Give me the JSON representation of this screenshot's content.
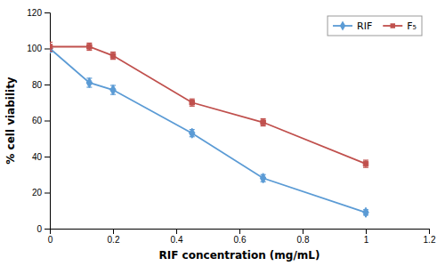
{
  "chart_data": {
    "type": "line",
    "x": [
      0,
      0.125,
      0.2,
      0.45,
      0.675,
      1
    ],
    "series": [
      {
        "name": "RIF",
        "color": "#5b9bd5",
        "marker": "diamond",
        "values": [
          100,
          81,
          77,
          53,
          28,
          9
        ],
        "errors": [
          2,
          2.5,
          2.5,
          2,
          2,
          1.5
        ]
      },
      {
        "name": "F₅",
        "color": "#c0504d",
        "marker": "square",
        "values": [
          101,
          101,
          96,
          70,
          59,
          36
        ],
        "errors": [
          2.5,
          2,
          2,
          2,
          2,
          2
        ]
      }
    ],
    "xlabel": "RIF concentration (mg/mL)",
    "ylabel": "% cell viability",
    "xlim": [
      0,
      1.2
    ],
    "ylim": [
      0,
      120
    ],
    "xticks": [
      0,
      0.2,
      0.4,
      0.6,
      0.8,
      1,
      1.2
    ],
    "yticks": [
      0,
      20,
      40,
      60,
      80,
      100,
      120
    ],
    "legend": "upper right"
  }
}
